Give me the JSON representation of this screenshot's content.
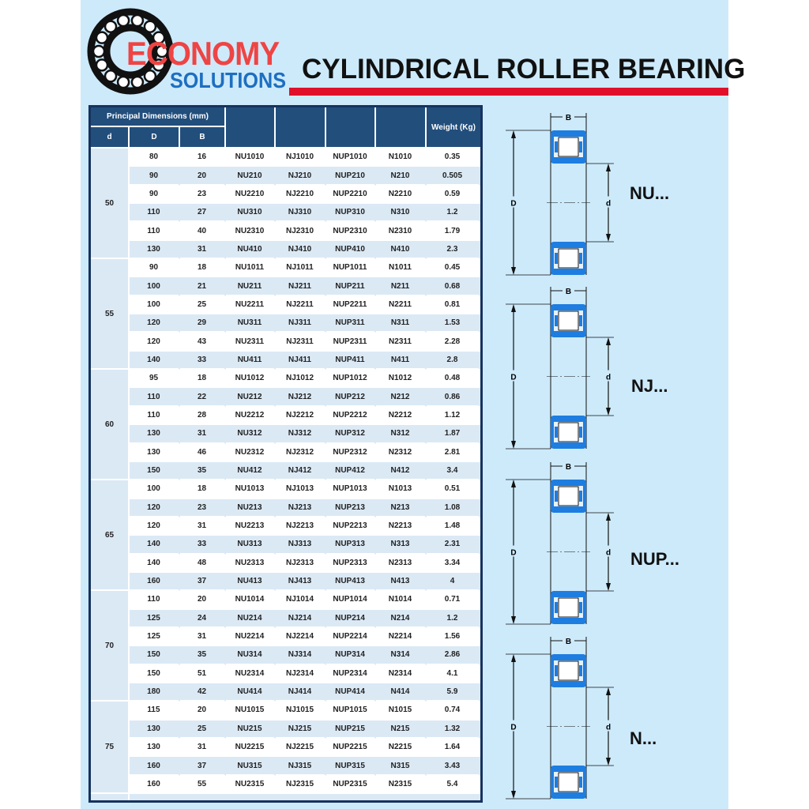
{
  "brand": {
    "line1": "ECONOMY",
    "line2": "SOLUTIONS"
  },
  "title": "CYLINDRICAL ROLLER BEARING",
  "colors": {
    "background": "#cdeafb",
    "header": "#224e7c",
    "accent_red": "#e0102a",
    "bearing_blue": "#1e7de0",
    "alt_row": "#dbe9f5"
  },
  "table": {
    "group_header": "Principal Dimensions (mm)",
    "headers": [
      "d",
      "D",
      "B",
      "",
      "",
      "",
      "",
      "Weight (Kg)"
    ],
    "groups": [
      {
        "d": "50",
        "rows": [
          [
            "80",
            "16",
            "NU1010",
            "NJ1010",
            "NUP1010",
            "N1010",
            "0.35"
          ],
          [
            "90",
            "20",
            "NU210",
            "NJ210",
            "NUP210",
            "N210",
            "0.505"
          ],
          [
            "90",
            "23",
            "NU2210",
            "NJ2210",
            "NUP2210",
            "N2210",
            "0.59"
          ],
          [
            "110",
            "27",
            "NU310",
            "NJ310",
            "NUP310",
            "N310",
            "1.2"
          ],
          [
            "110",
            "40",
            "NU2310",
            "NJ2310",
            "NUP2310",
            "N2310",
            "1.79"
          ],
          [
            "130",
            "31",
            "NU410",
            "NJ410",
            "NUP410",
            "N410",
            "2.3"
          ]
        ]
      },
      {
        "d": "55",
        "rows": [
          [
            "90",
            "18",
            "NU1011",
            "NJ1011",
            "NUP1011",
            "N1011",
            "0.45"
          ],
          [
            "100",
            "21",
            "NU211",
            "NJ211",
            "NUP211",
            "N211",
            "0.68"
          ],
          [
            "100",
            "25",
            "NU2211",
            "NJ2211",
            "NUP2211",
            "N2211",
            "0.81"
          ],
          [
            "120",
            "29",
            "NU311",
            "NJ311",
            "NUP311",
            "N311",
            "1.53"
          ],
          [
            "120",
            "43",
            "NU2311",
            "NJ2311",
            "NUP2311",
            "N2311",
            "2.28"
          ],
          [
            "140",
            "33",
            "NU411",
            "NJ411",
            "NUP411",
            "N411",
            "2.8"
          ]
        ]
      },
      {
        "d": "60",
        "rows": [
          [
            "95",
            "18",
            "NU1012",
            "NJ1012",
            "NUP1012",
            "N1012",
            "0.48"
          ],
          [
            "110",
            "22",
            "NU212",
            "NJ212",
            "NUP212",
            "N212",
            "0.86"
          ],
          [
            "110",
            "28",
            "NU2212",
            "NJ2212",
            "NUP2212",
            "N2212",
            "1.12"
          ],
          [
            "130",
            "31",
            "NU312",
            "NJ312",
            "NUP312",
            "N312",
            "1.87"
          ],
          [
            "130",
            "46",
            "NU2312",
            "NJ2312",
            "NUP2312",
            "N2312",
            "2.81"
          ],
          [
            "150",
            "35",
            "NU412",
            "NJ412",
            "NUP412",
            "N412",
            "3.4"
          ]
        ]
      },
      {
        "d": "65",
        "rows": [
          [
            "100",
            "18",
            "NU1013",
            "NJ1013",
            "NUP1013",
            "N1013",
            "0.51"
          ],
          [
            "120",
            "23",
            "NU213",
            "NJ213",
            "NUP213",
            "N213",
            "1.08"
          ],
          [
            "120",
            "31",
            "NU2213",
            "NJ2213",
            "NUP2213",
            "N2213",
            "1.48"
          ],
          [
            "140",
            "33",
            "NU313",
            "NJ313",
            "NUP313",
            "N313",
            "2.31"
          ],
          [
            "140",
            "48",
            "NU2313",
            "NJ2313",
            "NUP2313",
            "N2313",
            "3.34"
          ],
          [
            "160",
            "37",
            "NU413",
            "NJ413",
            "NUP413",
            "N413",
            "4"
          ]
        ]
      },
      {
        "d": "70",
        "rows": [
          [
            "110",
            "20",
            "NU1014",
            "NJ1014",
            "NUP1014",
            "N1014",
            "0.71"
          ],
          [
            "125",
            "24",
            "NU214",
            "NJ214",
            "NUP214",
            "N214",
            "1.2"
          ],
          [
            "125",
            "31",
            "NU2214",
            "NJ2214",
            "NUP2214",
            "N2214",
            "1.56"
          ],
          [
            "150",
            "35",
            "NU314",
            "NJ314",
            "NUP314",
            "N314",
            "2.86"
          ],
          [
            "150",
            "51",
            "NU2314",
            "NJ2314",
            "NUP2314",
            "N2314",
            "4.1"
          ],
          [
            "180",
            "42",
            "NU414",
            "NJ414",
            "NUP414",
            "N414",
            "5.9"
          ]
        ]
      },
      {
        "d": "75",
        "rows": [
          [
            "115",
            "20",
            "NU1015",
            "NJ1015",
            "NUP1015",
            "N1015",
            "0.74"
          ],
          [
            "130",
            "25",
            "NU215",
            "NJ215",
            "NUP215",
            "N215",
            "1.32"
          ],
          [
            "130",
            "31",
            "NU2215",
            "NJ2215",
            "NUP2215",
            "N2215",
            "1.64"
          ],
          [
            "160",
            "37",
            "NU315",
            "NJ315",
            "NUP315",
            "N315",
            "3.43"
          ],
          [
            "160",
            "55",
            "NU2315",
            "NJ2315",
            "NUP2315",
            "N2315",
            "5.4"
          ]
        ]
      }
    ]
  },
  "diagrams": [
    {
      "type": "NU",
      "label": "NU...",
      "dim_B": "B",
      "dim_D": "D",
      "dim_d": "d"
    },
    {
      "type": "NJ",
      "label": "NJ...",
      "dim_B": "B",
      "dim_D": "D",
      "dim_d": "d"
    },
    {
      "type": "NUP",
      "label": "NUP...",
      "dim_B": "B",
      "dim_D": "D",
      "dim_d": "d"
    },
    {
      "type": "N",
      "label": "N...",
      "dim_B": "B",
      "dim_D": "D",
      "dim_d": "d"
    }
  ]
}
